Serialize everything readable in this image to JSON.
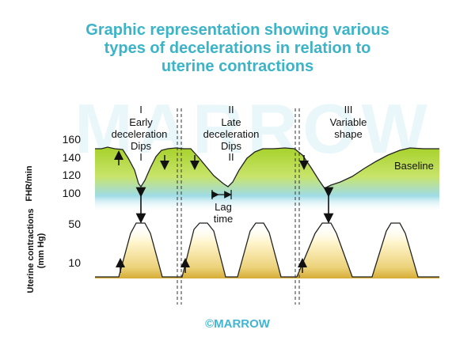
{
  "title": {
    "line1": "Graphic representation showing various",
    "line2": "types of decelerations in relation to",
    "line3": "uterine contractions"
  },
  "watermark": "MARROW",
  "footer": "©MARROW",
  "colors": {
    "title": "#3cb4c8",
    "fhr_top": "#a6d12a",
    "fhr_bottom": "#7fcfe0",
    "uc_top": "#fff8d6",
    "uc_bottom": "#d8b13a"
  },
  "fhr_axis": {
    "label": "FHR/min",
    "ticks": [
      "160",
      "140",
      "120",
      "100"
    ]
  },
  "uc_axis": {
    "label_line1": "Uterine contractions",
    "label_line2": "(mm Hg)",
    "ticks": [
      "50",
      "10"
    ]
  },
  "sections": [
    {
      "numeral": "I",
      "name_line1": "Early",
      "name_line2": "deceleration",
      "name_line3": "Dips",
      "numeral_below": "I"
    },
    {
      "numeral": "II",
      "name_line1": "Late",
      "name_line2": "deceleration",
      "name_line3": "Dips",
      "numeral_below": "II"
    },
    {
      "numeral": "III",
      "name_line1": "Variable",
      "name_line2": "shape"
    }
  ],
  "annotations": {
    "baseline": "Baseline",
    "lag_line1": "Lag",
    "lag_line2": "time"
  }
}
